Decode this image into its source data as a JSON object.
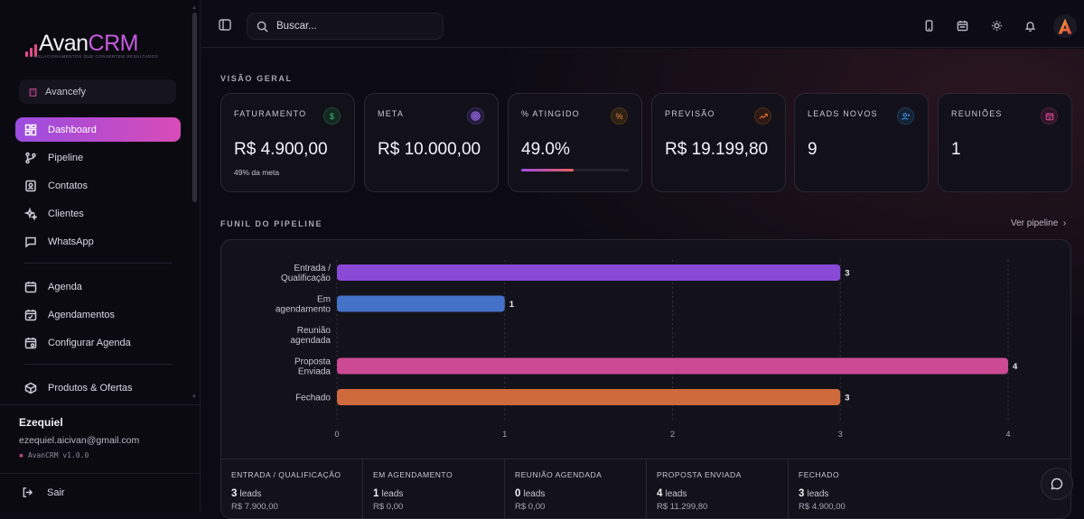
{
  "brand": {
    "name_part1": "Avan",
    "name_part2": "CRM",
    "tagline": "RELACIONAMENTOS QUE CONVERTEM RESULTADOS"
  },
  "workspace": {
    "name": "Avancefy"
  },
  "sidebar": {
    "items": [
      {
        "label": "Dashboard",
        "icon": "dashboard-icon",
        "active": true
      },
      {
        "label": "Pipeline",
        "icon": "pipeline-icon"
      },
      {
        "label": "Contatos",
        "icon": "contacts-icon"
      },
      {
        "label": "Clientes",
        "icon": "sparkles-icon"
      },
      {
        "label": "WhatsApp",
        "icon": "chat-icon"
      }
    ],
    "items2": [
      {
        "label": "Agenda",
        "icon": "calendar-icon"
      },
      {
        "label": "Agendamentos",
        "icon": "calendar-check-icon"
      },
      {
        "label": "Configurar Agenda",
        "icon": "calendar-settings-icon"
      }
    ],
    "items3": [
      {
        "label": "Produtos & Ofertas",
        "icon": "package-icon"
      }
    ]
  },
  "user": {
    "name": "Ezequiel",
    "email": "ezequiel.aicivan@gmail.com",
    "version": "AvanCRM v1.0.0"
  },
  "logout_label": "Sair",
  "search": {
    "placeholder": "Buscar..."
  },
  "overview": {
    "title": "VISÃO GERAL",
    "cards": [
      {
        "label": "FATURAMENTO",
        "value": "R$ 4.900,00",
        "sub": "49% da meta",
        "icon": "dollar-icon",
        "color": "#3fbf7f"
      },
      {
        "label": "META",
        "value": "R$ 10.000,00",
        "icon": "target-icon",
        "color": "#9b6cf0"
      },
      {
        "label": "% ATINGIDO",
        "value": "49.0%",
        "progress": 0.49,
        "icon": "percent-icon",
        "color": "#e0883a"
      },
      {
        "label": "PREVISÃO",
        "value": "R$ 19.199,80",
        "icon": "trend-icon",
        "color": "#e06a3a"
      },
      {
        "label": "LEADS NOVOS",
        "value": "9",
        "icon": "user-plus-icon",
        "color": "#3f8fe0"
      },
      {
        "label": "REUNIÕES",
        "value": "1",
        "icon": "calendar-icon",
        "color": "#d64d9b"
      }
    ]
  },
  "pipeline": {
    "title": "FUNIL DO PIPELINE",
    "link": "Ver pipeline"
  },
  "chart_data": {
    "type": "bar",
    "orientation": "horizontal",
    "categories": [
      [
        "Entrada /",
        "Qualificação"
      ],
      [
        "Em",
        "agendamento"
      ],
      [
        "Reunião",
        "agendada"
      ],
      [
        "Proposta",
        "Enviada"
      ],
      [
        "Fechado"
      ]
    ],
    "values": [
      3,
      1,
      0,
      4,
      3
    ],
    "colors": [
      "#8a48d6",
      "#4472c8",
      "#8a48d6",
      "#cc4a94",
      "#cf6a3c"
    ],
    "xlim": [
      0,
      4
    ],
    "xticks": [
      "0",
      "1",
      "2",
      "3",
      "4"
    ],
    "grid": true
  },
  "stages": [
    {
      "label": "ENTRADA / QUALIFICAÇÃO",
      "count": "3",
      "unit": "leads",
      "value": "R$ 7.900,00"
    },
    {
      "label": "EM AGENDAMENTO",
      "count": "1",
      "unit": "leads",
      "value": "R$ 0,00"
    },
    {
      "label": "REUNIÃO AGENDADA",
      "count": "0",
      "unit": "leads",
      "value": "R$ 0,00"
    },
    {
      "label": "PROPOSTA ENVIADA",
      "count": "4",
      "unit": "leads",
      "value": "R$ 11.299,80"
    },
    {
      "label": "FECHADO",
      "count": "3",
      "unit": "leads",
      "value": "R$ 4.900,00"
    }
  ]
}
